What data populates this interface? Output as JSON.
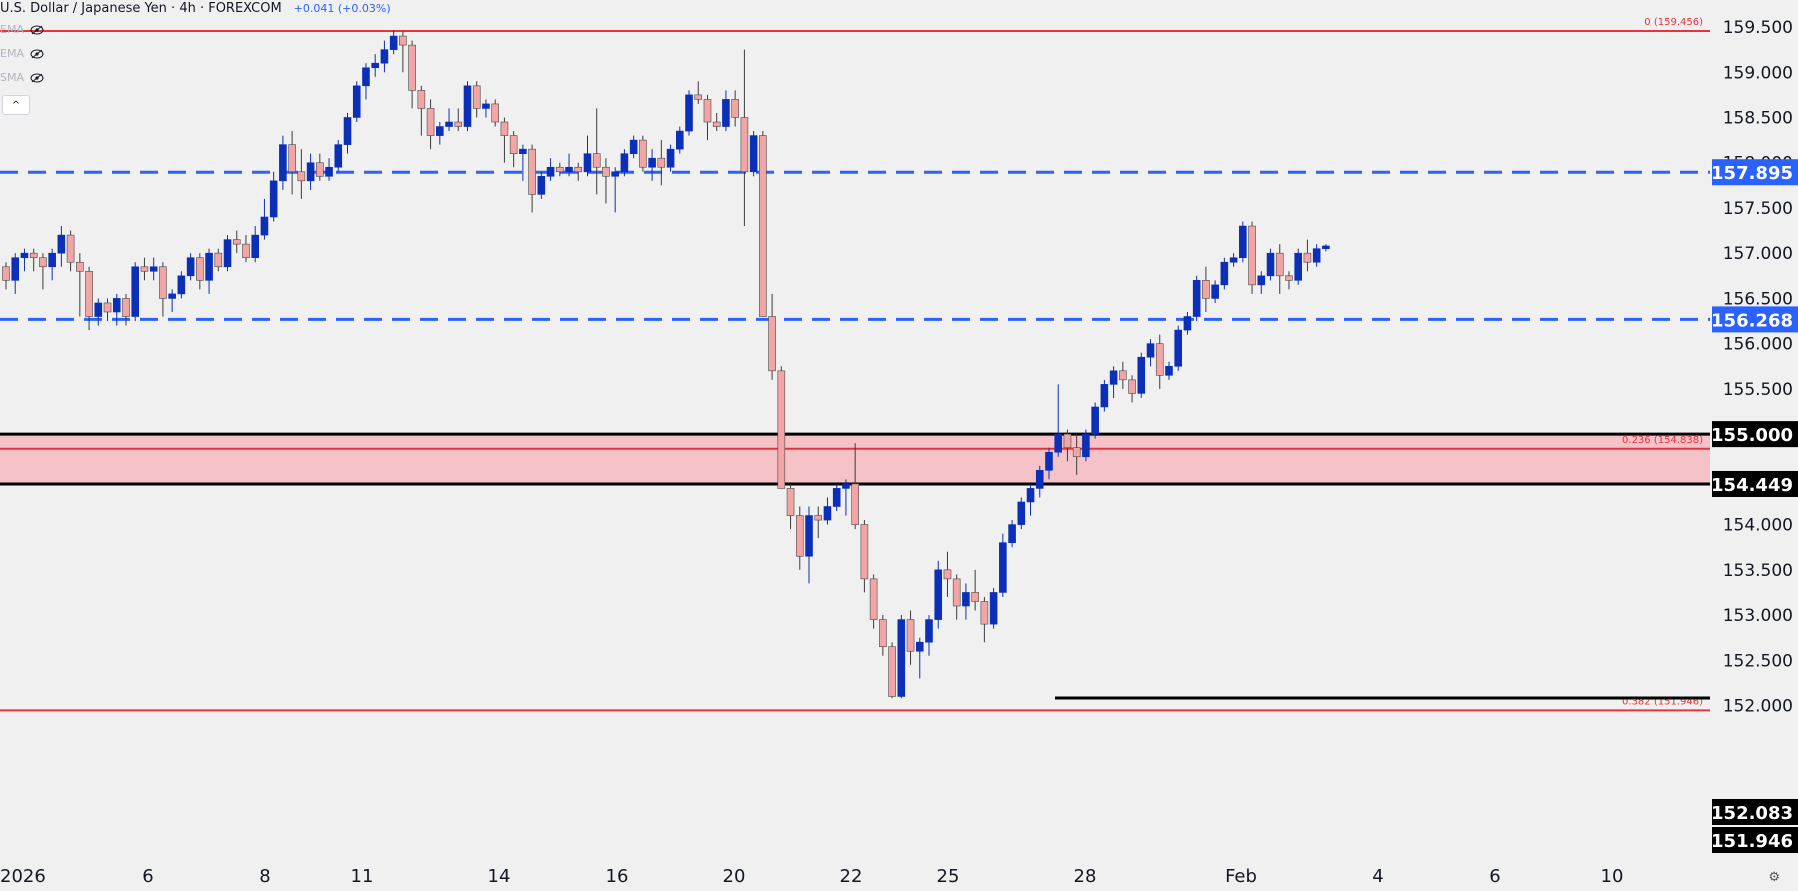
{
  "header": {
    "symbol": "U.S. Dollar / Japanese Yen · 4h · FOREXCOM",
    "change": "+0.041 (+0.03%)"
  },
  "indicators": [
    {
      "label": "EMA"
    },
    {
      "label": "EMA"
    },
    {
      "label": "SMA"
    }
  ],
  "controls": {
    "collapse": "^",
    "settings_icon": "gear-icon"
  },
  "colors": {
    "up": "#0c2fb8",
    "down": "#f2a5a5",
    "wick": "#3b3b3b",
    "fib": "#e8323c",
    "dashed": "#2962ff",
    "zone": "#f5c2c8",
    "background": "#f0f0f0"
  },
  "chart_data": {
    "type": "candlestick",
    "title": "U.S. Dollar / Japanese Yen · 4h · FOREXCOM",
    "ylim": [
      151.75,
      159.75
    ],
    "x_ticks": [
      "2026",
      "6",
      "8",
      "11",
      "14",
      "16",
      "20",
      "22",
      "25",
      "28",
      "Feb",
      "4",
      "6",
      "10"
    ],
    "y_ticks": [
      "159.500",
      "159.000",
      "158.500",
      "158.000",
      "157.500",
      "157.000",
      "156.500",
      "156.000",
      "155.500",
      "155.000",
      "154.500",
      "154.000",
      "153.500",
      "153.000",
      "152.500",
      "152.000"
    ],
    "price_labels": [
      {
        "value": "157.895",
        "kind": "blue"
      },
      {
        "value": "156.268",
        "kind": "blue"
      },
      {
        "value": "155.000",
        "kind": "dark"
      },
      {
        "value": "154.449",
        "kind": "dark"
      },
      {
        "value": "152.083",
        "kind": "dark"
      },
      {
        "value": "151.946",
        "kind": "dark"
      }
    ],
    "levels": [
      {
        "price": 159.456,
        "style": "fib",
        "label": "0 (159.456)"
      },
      {
        "price": 154.838,
        "style": "fib",
        "label": "0.236 (154.838)"
      },
      {
        "price": 151.946,
        "style": "fib",
        "label": "0.382 (151.946)"
      },
      {
        "price": 157.895,
        "style": "dashed"
      },
      {
        "price": 156.268,
        "style": "dashed"
      },
      {
        "price": 155.0,
        "style": "solid"
      },
      {
        "price": 154.449,
        "style": "solid"
      },
      {
        "price": 152.083,
        "style": "solid"
      }
    ],
    "zone": {
      "from": 154.449,
      "to": 155.0
    },
    "candles": [
      [
        156.85,
        156.9,
        156.6,
        156.7
      ],
      [
        156.7,
        157.0,
        156.55,
        156.95
      ],
      [
        156.95,
        157.05,
        156.8,
        157.0
      ],
      [
        157.0,
        157.05,
        156.8,
        156.95
      ],
      [
        156.95,
        157.0,
        156.6,
        156.85
      ],
      [
        156.85,
        157.05,
        156.7,
        157.0
      ],
      [
        157.0,
        157.3,
        156.85,
        157.2
      ],
      [
        157.2,
        157.25,
        156.8,
        156.9
      ],
      [
        156.9,
        157.0,
        156.3,
        156.8
      ],
      [
        156.8,
        156.85,
        156.15,
        156.3
      ],
      [
        156.3,
        156.5,
        156.2,
        156.45
      ],
      [
        156.45,
        156.5,
        156.25,
        156.35
      ],
      [
        156.35,
        156.55,
        156.2,
        156.5
      ],
      [
        156.5,
        156.55,
        156.2,
        156.3
      ],
      [
        156.3,
        156.9,
        156.25,
        156.85
      ],
      [
        156.85,
        156.95,
        156.7,
        156.8
      ],
      [
        156.8,
        156.95,
        156.7,
        156.85
      ],
      [
        156.85,
        156.9,
        156.3,
        156.5
      ],
      [
        156.5,
        156.6,
        156.35,
        156.55
      ],
      [
        156.55,
        156.8,
        156.5,
        156.75
      ],
      [
        156.75,
        157.0,
        156.7,
        156.95
      ],
      [
        156.95,
        157.0,
        156.6,
        156.7
      ],
      [
        156.7,
        157.05,
        156.55,
        157.0
      ],
      [
        157.0,
        157.05,
        156.8,
        156.85
      ],
      [
        156.85,
        157.2,
        156.8,
        157.15
      ],
      [
        157.15,
        157.25,
        157.0,
        157.1
      ],
      [
        157.1,
        157.2,
        156.9,
        156.95
      ],
      [
        156.95,
        157.3,
        156.9,
        157.2
      ],
      [
        157.2,
        157.6,
        157.15,
        157.4
      ],
      [
        157.4,
        157.9,
        157.35,
        157.8
      ],
      [
        157.8,
        158.3,
        157.7,
        158.2
      ],
      [
        158.2,
        158.35,
        157.65,
        157.9
      ],
      [
        157.9,
        158.15,
        157.6,
        157.8
      ],
      [
        157.8,
        158.1,
        157.7,
        158.0
      ],
      [
        158.0,
        158.1,
        157.8,
        157.85
      ],
      [
        157.85,
        158.05,
        157.8,
        157.95
      ],
      [
        157.95,
        158.25,
        157.9,
        158.2
      ],
      [
        158.2,
        158.55,
        158.1,
        158.5
      ],
      [
        158.5,
        158.9,
        158.45,
        158.85
      ],
      [
        158.85,
        159.1,
        158.7,
        159.05
      ],
      [
        159.05,
        159.2,
        158.95,
        159.1
      ],
      [
        159.1,
        159.35,
        159.0,
        159.25
      ],
      [
        159.25,
        159.46,
        159.2,
        159.4
      ],
      [
        159.4,
        159.45,
        159.0,
        159.3
      ],
      [
        159.3,
        159.35,
        158.6,
        158.8
      ],
      [
        158.8,
        158.85,
        158.3,
        158.6
      ],
      [
        158.6,
        158.7,
        158.15,
        158.3
      ],
      [
        158.3,
        158.45,
        158.2,
        158.4
      ],
      [
        158.4,
        158.6,
        158.35,
        158.45
      ],
      [
        158.45,
        158.6,
        158.35,
        158.4
      ],
      [
        158.4,
        158.9,
        158.35,
        158.85
      ],
      [
        158.85,
        158.9,
        158.5,
        158.6
      ],
      [
        158.6,
        158.7,
        158.5,
        158.65
      ],
      [
        158.65,
        158.7,
        158.4,
        158.45
      ],
      [
        158.45,
        158.5,
        158.0,
        158.3
      ],
      [
        158.3,
        158.35,
        157.95,
        158.1
      ],
      [
        158.1,
        158.2,
        157.8,
        158.15
      ],
      [
        158.15,
        158.2,
        157.45,
        157.65
      ],
      [
        157.65,
        157.9,
        157.6,
        157.85
      ],
      [
        157.85,
        158.05,
        157.8,
        157.95
      ],
      [
        157.95,
        158.0,
        157.85,
        157.9
      ],
      [
        157.9,
        158.1,
        157.85,
        157.95
      ],
      [
        157.95,
        158.0,
        157.8,
        157.9
      ],
      [
        157.9,
        158.3,
        157.85,
        158.1
      ],
      [
        158.1,
        158.6,
        157.65,
        157.95
      ],
      [
        157.95,
        158.05,
        157.55,
        157.85
      ],
      [
        157.85,
        157.95,
        157.45,
        157.9
      ],
      [
        157.9,
        158.15,
        157.85,
        158.1
      ],
      [
        158.1,
        158.3,
        158.05,
        158.25
      ],
      [
        158.25,
        158.3,
        157.9,
        157.95
      ],
      [
        157.95,
        158.15,
        157.8,
        158.05
      ],
      [
        158.05,
        158.25,
        157.75,
        157.95
      ],
      [
        157.95,
        158.2,
        157.9,
        158.15
      ],
      [
        158.15,
        158.4,
        158.1,
        158.35
      ],
      [
        158.35,
        158.8,
        158.3,
        158.75
      ],
      [
        158.75,
        158.9,
        158.65,
        158.7
      ],
      [
        158.7,
        158.75,
        158.25,
        158.45
      ],
      [
        158.45,
        158.55,
        158.35,
        158.4
      ],
      [
        158.4,
        158.8,
        158.35,
        158.7
      ],
      [
        158.7,
        158.8,
        158.4,
        158.5
      ],
      [
        158.5,
        159.25,
        157.3,
        157.9
      ],
      [
        157.9,
        158.35,
        157.85,
        158.3
      ],
      [
        158.3,
        158.35,
        156.35,
        156.3
      ],
      [
        156.3,
        156.55,
        155.6,
        155.7
      ],
      [
        155.7,
        155.75,
        154.45,
        154.4
      ],
      [
        154.4,
        154.45,
        153.95,
        154.1
      ],
      [
        154.1,
        154.2,
        153.5,
        153.65
      ],
      [
        153.65,
        154.2,
        153.35,
        154.1
      ],
      [
        154.1,
        154.2,
        153.85,
        154.05
      ],
      [
        154.05,
        154.3,
        154.0,
        154.2
      ],
      [
        154.2,
        154.45,
        154.15,
        154.4
      ],
      [
        154.4,
        154.5,
        154.1,
        154.45
      ],
      [
        154.45,
        154.9,
        153.95,
        154.0
      ],
      [
        154.0,
        154.05,
        153.25,
        153.4
      ],
      [
        153.4,
        153.45,
        152.85,
        152.95
      ],
      [
        152.95,
        153.0,
        152.55,
        152.65
      ],
      [
        152.65,
        152.7,
        152.08,
        152.1
      ],
      [
        152.1,
        153.0,
        152.08,
        152.95
      ],
      [
        152.95,
        153.05,
        152.45,
        152.6
      ],
      [
        152.6,
        152.75,
        152.3,
        152.7
      ],
      [
        152.7,
        153.0,
        152.55,
        152.95
      ],
      [
        152.95,
        153.6,
        152.85,
        153.5
      ],
      [
        153.5,
        153.7,
        153.2,
        153.4
      ],
      [
        153.4,
        153.45,
        152.95,
        153.1
      ],
      [
        153.1,
        153.35,
        152.95,
        153.25
      ],
      [
        153.25,
        153.5,
        153.05,
        153.15
      ],
      [
        153.15,
        153.2,
        152.7,
        152.9
      ],
      [
        152.9,
        153.3,
        152.85,
        153.25
      ],
      [
        153.25,
        153.9,
        153.2,
        153.8
      ],
      [
        153.8,
        154.05,
        153.75,
        154.0
      ],
      [
        154.0,
        154.3,
        153.95,
        154.25
      ],
      [
        154.25,
        154.45,
        154.1,
        154.4
      ],
      [
        154.4,
        154.65,
        154.3,
        154.6
      ],
      [
        154.6,
        154.85,
        154.5,
        154.8
      ],
      [
        154.8,
        155.55,
        154.75,
        155.0
      ],
      [
        155.0,
        155.05,
        154.7,
        154.85
      ],
      [
        154.85,
        155.0,
        154.55,
        154.75
      ],
      [
        154.75,
        155.05,
        154.7,
        155.0
      ],
      [
        155.0,
        155.35,
        154.95,
        155.3
      ],
      [
        155.3,
        155.6,
        155.25,
        155.55
      ],
      [
        155.55,
        155.75,
        155.4,
        155.7
      ],
      [
        155.7,
        155.8,
        155.5,
        155.6
      ],
      [
        155.6,
        155.65,
        155.35,
        155.45
      ],
      [
        155.45,
        155.9,
        155.4,
        155.85
      ],
      [
        155.85,
        156.05,
        155.75,
        156.0
      ],
      [
        156.0,
        156.1,
        155.5,
        155.65
      ],
      [
        155.65,
        155.8,
        155.6,
        155.75
      ],
      [
        155.75,
        156.2,
        155.7,
        156.15
      ],
      [
        156.15,
        156.35,
        156.1,
        156.3
      ],
      [
        156.3,
        156.75,
        156.25,
        156.7
      ],
      [
        156.7,
        156.85,
        156.35,
        156.5
      ],
      [
        156.5,
        156.7,
        156.45,
        156.65
      ],
      [
        156.65,
        156.95,
        156.6,
        156.9
      ],
      [
        156.9,
        157.0,
        156.85,
        156.95
      ],
      [
        156.95,
        157.35,
        156.9,
        157.3
      ],
      [
        157.3,
        157.35,
        156.55,
        156.65
      ],
      [
        156.65,
        156.8,
        156.55,
        156.75
      ],
      [
        156.75,
        157.05,
        156.7,
        157.0
      ],
      [
        157.0,
        157.1,
        156.55,
        156.75
      ],
      [
        156.75,
        156.8,
        156.6,
        156.7
      ],
      [
        156.7,
        157.05,
        156.65,
        157.0
      ],
      [
        157.0,
        157.15,
        156.8,
        156.9
      ],
      [
        156.9,
        157.1,
        156.85,
        157.05
      ],
      [
        157.05,
        157.1,
        157.02,
        157.08
      ]
    ]
  }
}
